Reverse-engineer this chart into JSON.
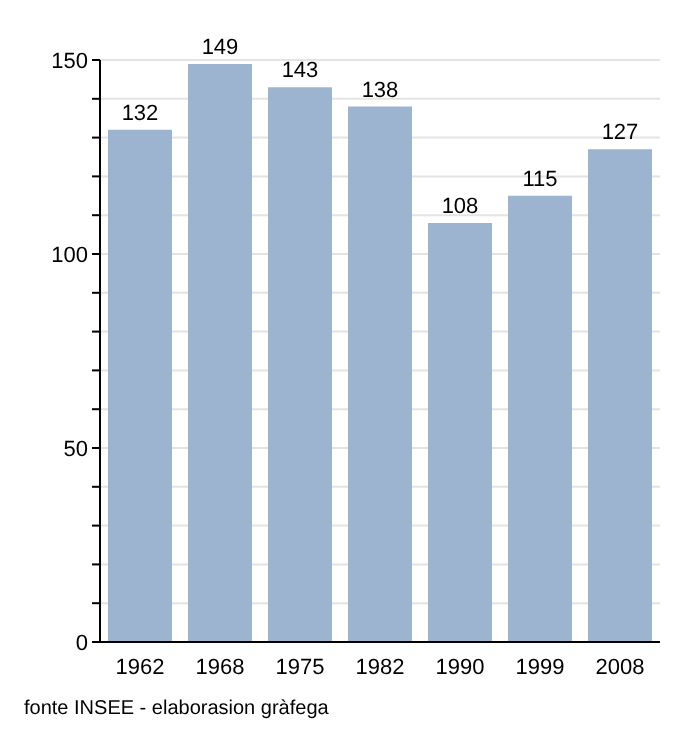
{
  "chart_data": {
    "type": "bar",
    "categories": [
      "1962",
      "1968",
      "1975",
      "1982",
      "1990",
      "1999",
      "2008"
    ],
    "values": [
      132,
      149,
      143,
      138,
      108,
      115,
      127
    ],
    "color": "#9cb4cf",
    "data_labels": true,
    "grid": "y",
    "ylim": [
      0,
      150
    ],
    "yticks": [
      0,
      {
        "value": 10,
        "label": null
      },
      {
        "value": 20,
        "label": null
      },
      {
        "value": 30,
        "label": null
      },
      {
        "value": 40,
        "label": null
      },
      50,
      {
        "value": 60,
        "label": null
      },
      {
        "value": 70,
        "label": null
      },
      {
        "value": 80,
        "label": null
      },
      {
        "value": 90,
        "label": null
      },
      100,
      {
        "value": 110,
        "label": null
      },
      {
        "value": 120,
        "label": null
      },
      {
        "value": 130,
        "label": null
      },
      {
        "value": 140,
        "label": null
      },
      150
    ],
    "annotations": [
      "fonte INSEE - elaborasion gràfega"
    ]
  }
}
